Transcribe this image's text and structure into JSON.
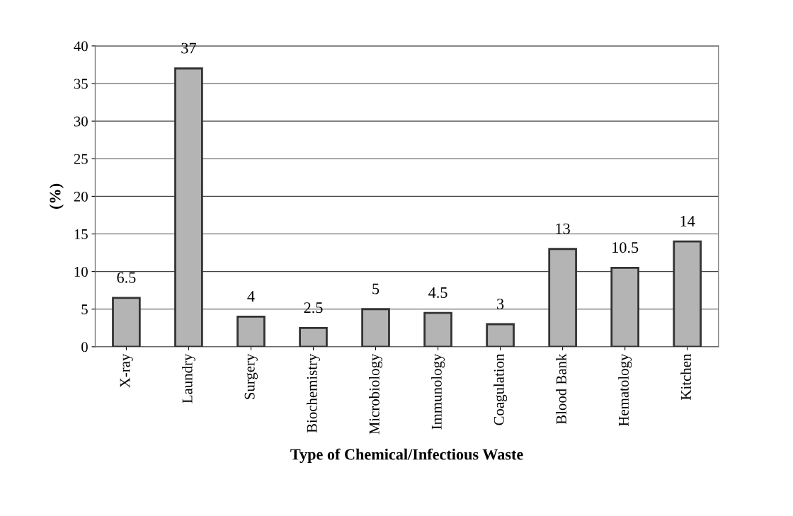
{
  "chart_data": {
    "type": "bar",
    "xlabel": "Type of Chemical/Infectious Waste",
    "ylabel": "(%)",
    "categories": [
      "X-ray",
      "Laundry",
      "Surgery",
      "Biochemistry",
      "Microbiology",
      "Immunology",
      "Coagulation",
      "Blood Bank",
      "Hematology",
      "Kitchen"
    ],
    "values": [
      6.5,
      37,
      4,
      2.5,
      5,
      4.5,
      3,
      13,
      10.5,
      14
    ],
    "color": "#b4b4b4",
    "ylim": [
      0,
      40
    ],
    "yticks": [
      0,
      5,
      10,
      15,
      20,
      25,
      30,
      35,
      40
    ],
    "grid": "y",
    "data_labels": true
  }
}
